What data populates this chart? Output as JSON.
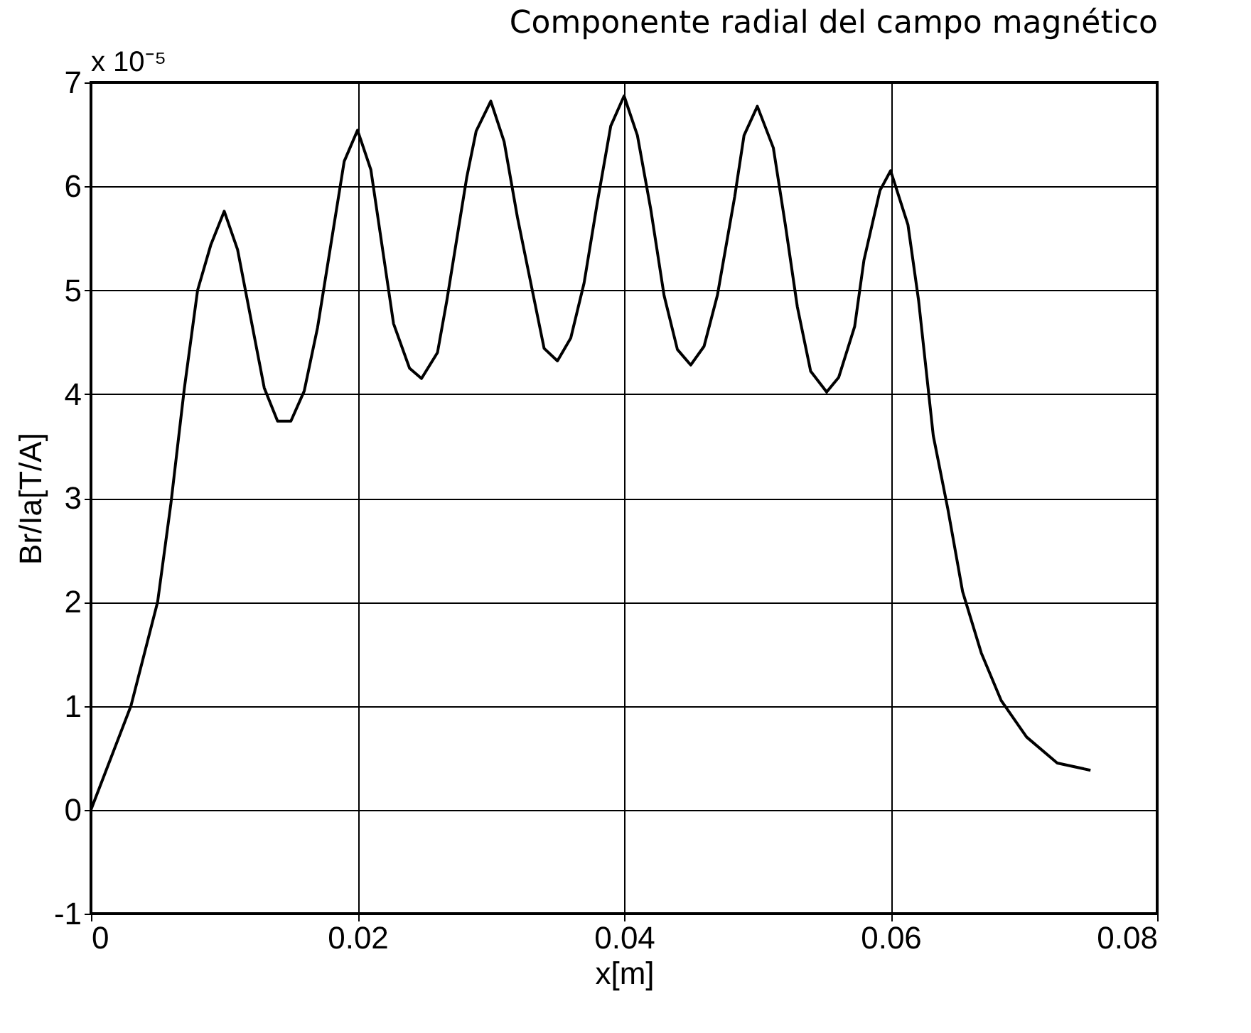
{
  "chart_data": {
    "type": "line",
    "title": "Componente radial del campo magnético",
    "xlabel": "x[m]",
    "ylabel": "Br/Ia[T/A]",
    "annotations": [
      "x 10⁻⁵"
    ],
    "x": [
      0,
      0.003,
      0.005,
      0.006,
      0.007,
      0.008,
      0.009,
      0.01,
      0.011,
      0.013,
      0.014,
      0.015,
      0.016,
      0.017,
      0.018,
      0.019,
      0.02,
      0.021,
      0.0227,
      0.0239,
      0.0248,
      0.026,
      0.0267,
      0.0282,
      0.0289,
      0.03,
      0.031,
      0.032,
      0.034,
      0.035,
      0.036,
      0.037,
      0.038,
      0.039,
      0.04,
      0.041,
      0.042,
      0.043,
      0.044,
      0.045,
      0.046,
      0.047,
      0.0483,
      0.049,
      0.05,
      0.0512,
      0.0521,
      0.053,
      0.054,
      0.0552,
      0.0561,
      0.0573,
      0.058,
      0.0592,
      0.06,
      0.0613,
      0.0621,
      0.0632,
      0.0643,
      0.0654,
      0.0668,
      0.0683,
      0.0702,
      0.0725,
      0.075
    ],
    "series": [
      {
        "color": "#000000",
        "values": [
          0,
          1.0,
          2.0,
          2.95,
          4.05,
          5.0,
          5.44,
          5.76,
          5.39,
          4.06,
          3.74,
          3.74,
          4.03,
          4.64,
          5.44,
          6.24,
          6.54,
          6.16,
          4.68,
          4.25,
          4.15,
          4.4,
          4.9,
          6.09,
          6.53,
          6.82,
          6.43,
          5.7,
          4.44,
          4.32,
          4.54,
          5.07,
          5.85,
          6.58,
          6.87,
          6.49,
          5.78,
          4.95,
          4.43,
          4.28,
          4.46,
          4.95,
          5.9,
          6.49,
          6.77,
          6.37,
          5.63,
          4.84,
          4.22,
          4.02,
          4.16,
          4.65,
          5.29,
          5.96,
          6.15,
          5.63,
          4.9,
          3.6,
          2.89,
          2.1,
          1.51,
          1.05,
          0.7,
          0.45,
          0.38
        ]
      }
    ],
    "xlim": [
      0,
      0.08
    ],
    "xticks": [
      0,
      0.02,
      0.04,
      0.06,
      0.08
    ],
    "ylim": [
      -1,
      7
    ],
    "yticks": [
      -1,
      0,
      1,
      2,
      3,
      4,
      5,
      6,
      7
    ],
    "grid": true,
    "legend": false,
    "marker": "none",
    "line_style": "solid"
  }
}
